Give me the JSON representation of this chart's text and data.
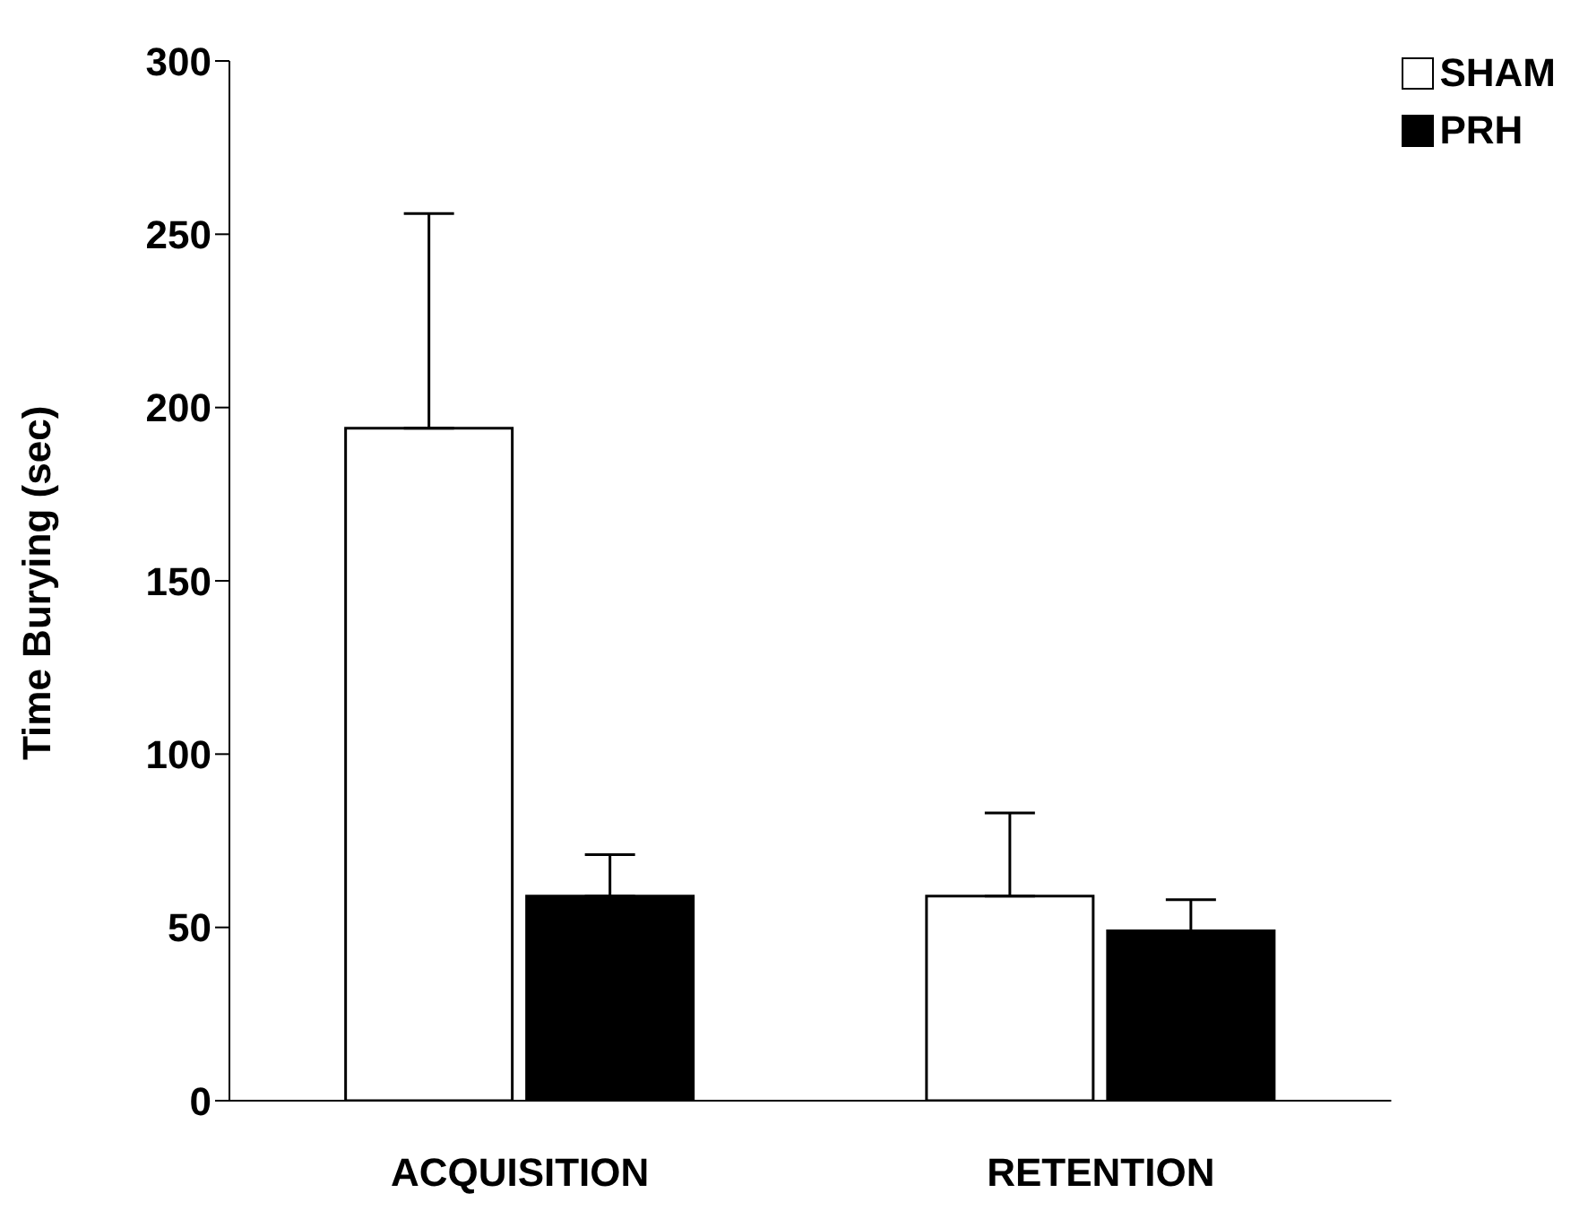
{
  "chart_data": {
    "type": "bar",
    "ylabel": "Time Burying (sec)",
    "categories": [
      "ACQUISITION",
      "RETENTION"
    ],
    "series": [
      {
        "name": "SHAM",
        "color": "#ffffff",
        "values": [
          194,
          59
        ],
        "errors": [
          [
            194,
            256
          ],
          [
            59,
            83
          ]
        ]
      },
      {
        "name": "PRH",
        "color": "#000000",
        "values": [
          59,
          49
        ],
        "errors": [
          [
            59,
            71
          ],
          [
            49,
            58
          ]
        ]
      }
    ],
    "ylim": [
      0,
      300
    ],
    "yticks": [
      0,
      50,
      100,
      150,
      200,
      250,
      300
    ],
    "grid": false,
    "legend": "top right"
  }
}
